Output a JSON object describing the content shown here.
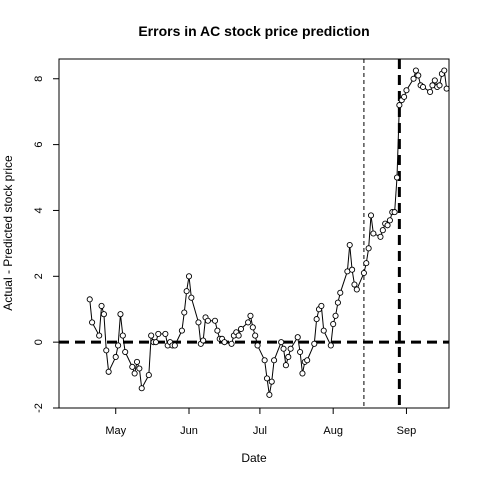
{
  "chart_data": {
    "type": "line",
    "title": "Errors in AC stock price prediction",
    "xlabel": "Date",
    "ylabel": "Actual - Predicted stock price",
    "xlim": [
      "2017-04-07",
      "2017-09-19"
    ],
    "ylim": [
      -2,
      8.6
    ],
    "x_ticks": [
      {
        "date": "2017-05-01",
        "label": "May"
      },
      {
        "date": "2017-06-01",
        "label": "Jun"
      },
      {
        "date": "2017-07-01",
        "label": "Jul"
      },
      {
        "date": "2017-08-01",
        "label": "Aug"
      },
      {
        "date": "2017-09-01",
        "label": "Sep"
      }
    ],
    "y_ticks": [
      -2,
      0,
      2,
      4,
      6,
      8
    ],
    "grid": false,
    "reference_lines": [
      {
        "axis": "y",
        "value": 0,
        "style": "thick-dashed"
      },
      {
        "axis": "x",
        "value": "2017-08-14",
        "style": "thin-dashed"
      },
      {
        "axis": "x",
        "value": "2017-08-29",
        "style": "thick-dashed"
      }
    ],
    "series": [
      {
        "style": "line-with-open-circles",
        "points": [
          [
            "2017-04-20",
            1.3
          ],
          [
            "2017-04-21",
            0.6
          ],
          [
            "2017-04-24",
            0.2
          ],
          [
            "2017-04-25",
            1.1
          ],
          [
            "2017-04-26",
            0.85
          ],
          [
            "2017-04-27",
            -0.25
          ],
          [
            "2017-04-28",
            -0.9
          ],
          [
            "2017-05-01",
            -0.45
          ],
          [
            "2017-05-02",
            -0.1
          ],
          [
            "2017-05-03",
            0.85
          ],
          [
            "2017-05-04",
            0.2
          ],
          [
            "2017-05-05",
            -0.3
          ],
          [
            "2017-05-08",
            -0.75
          ],
          [
            "2017-05-09",
            -0.95
          ],
          [
            "2017-05-10",
            -0.6
          ],
          [
            "2017-05-11",
            -0.8
          ],
          [
            "2017-05-12",
            -1.4
          ],
          [
            "2017-05-15",
            -1.0
          ],
          [
            "2017-05-16",
            0.2
          ],
          [
            "2017-05-17",
            0.0
          ],
          [
            "2017-05-18",
            0.0
          ],
          [
            "2017-05-19",
            0.25
          ],
          [
            "2017-05-22",
            0.25
          ],
          [
            "2017-05-23",
            -0.1
          ],
          [
            "2017-05-24",
            0.0
          ],
          [
            "2017-05-25",
            -0.1
          ],
          [
            "2017-05-26",
            -0.1
          ],
          [
            "2017-05-29",
            0.35
          ],
          [
            "2017-05-30",
            0.9
          ],
          [
            "2017-05-31",
            1.55
          ],
          [
            "2017-06-01",
            2.0
          ],
          [
            "2017-06-02",
            1.35
          ],
          [
            "2017-06-05",
            0.6
          ],
          [
            "2017-06-06",
            -0.05
          ],
          [
            "2017-06-07",
            0.05
          ],
          [
            "2017-06-08",
            0.75
          ],
          [
            "2017-06-09",
            0.65
          ],
          [
            "2017-06-12",
            0.65
          ],
          [
            "2017-06-13",
            0.35
          ],
          [
            "2017-06-14",
            0.1
          ],
          [
            "2017-06-15",
            0.1
          ],
          [
            "2017-06-16",
            0.0
          ],
          [
            "2017-06-19",
            -0.05
          ],
          [
            "2017-06-20",
            0.2
          ],
          [
            "2017-06-21",
            0.3
          ],
          [
            "2017-06-22",
            0.2
          ],
          [
            "2017-06-23",
            0.4
          ],
          [
            "2017-06-26",
            0.6
          ],
          [
            "2017-06-27",
            0.8
          ],
          [
            "2017-06-28",
            0.45
          ],
          [
            "2017-06-29",
            0.2
          ],
          [
            "2017-06-30",
            -0.1
          ],
          [
            "2017-07-03",
            -0.55
          ],
          [
            "2017-07-04",
            -1.1
          ],
          [
            "2017-07-05",
            -1.6
          ],
          [
            "2017-07-06",
            -1.2
          ],
          [
            "2017-07-07",
            -0.55
          ],
          [
            "2017-07-10",
            0.0
          ],
          [
            "2017-07-11",
            -0.2
          ],
          [
            "2017-07-12",
            -0.7
          ],
          [
            "2017-07-13",
            -0.45
          ],
          [
            "2017-07-14",
            -0.2
          ],
          [
            "2017-07-17",
            0.15
          ],
          [
            "2017-07-18",
            -0.3
          ],
          [
            "2017-07-19",
            -0.95
          ],
          [
            "2017-07-20",
            -0.6
          ],
          [
            "2017-07-21",
            -0.55
          ],
          [
            "2017-07-24",
            -0.05
          ],
          [
            "2017-07-25",
            0.7
          ],
          [
            "2017-07-26",
            1.0
          ],
          [
            "2017-07-27",
            1.1
          ],
          [
            "2017-07-28",
            0.35
          ],
          [
            "2017-07-31",
            -0.1
          ],
          [
            "2017-08-01",
            0.55
          ],
          [
            "2017-08-02",
            0.8
          ],
          [
            "2017-08-03",
            1.2
          ],
          [
            "2017-08-04",
            1.5
          ],
          [
            "2017-08-07",
            2.15
          ],
          [
            "2017-08-08",
            2.95
          ],
          [
            "2017-08-09",
            2.2
          ],
          [
            "2017-08-10",
            1.75
          ],
          [
            "2017-08-11",
            1.6
          ],
          [
            "2017-08-14",
            2.1
          ],
          [
            "2017-08-15",
            2.4
          ],
          [
            "2017-08-16",
            2.85
          ],
          [
            "2017-08-17",
            3.85
          ],
          [
            "2017-08-18",
            3.3
          ],
          [
            "2017-08-21",
            3.2
          ],
          [
            "2017-08-22",
            3.4
          ],
          [
            "2017-08-23",
            3.6
          ],
          [
            "2017-08-24",
            3.55
          ],
          [
            "2017-08-25",
            3.7
          ],
          [
            "2017-08-26",
            3.95
          ],
          [
            "2017-08-27",
            3.95
          ],
          [
            "2017-08-28",
            5.0
          ],
          [
            "2017-08-29",
            7.2
          ],
          [
            "2017-08-30",
            7.35
          ],
          [
            "2017-08-31",
            7.45
          ],
          [
            "2017-09-01",
            7.65
          ],
          [
            "2017-09-04",
            8.0
          ],
          [
            "2017-09-05",
            8.25
          ],
          [
            "2017-09-06",
            8.1
          ],
          [
            "2017-09-07",
            7.8
          ],
          [
            "2017-09-08",
            7.75
          ],
          [
            "2017-09-11",
            7.6
          ],
          [
            "2017-09-12",
            7.8
          ],
          [
            "2017-09-13",
            7.95
          ],
          [
            "2017-09-14",
            7.75
          ],
          [
            "2017-09-15",
            7.8
          ],
          [
            "2017-09-16",
            8.15
          ],
          [
            "2017-09-17",
            8.25
          ],
          [
            "2017-09-18",
            7.7
          ]
        ]
      }
    ]
  }
}
